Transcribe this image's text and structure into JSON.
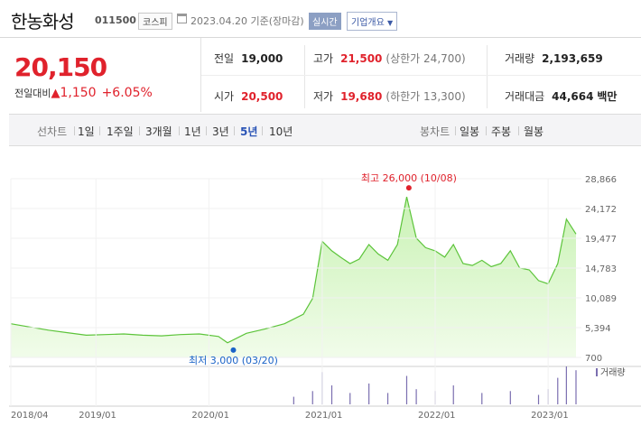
{
  "header": {
    "stock_name": "한농화성",
    "stock_code": "011500",
    "market_badge": "코스피",
    "date_text": "2023.04.20 기준(장마감)",
    "realtime_badge": "실시간",
    "company_info_button": "기업개요"
  },
  "price": {
    "current": "20,150",
    "change_label": "전일대비",
    "change_value": "1,150",
    "change_pct": "+6.05%"
  },
  "summary": {
    "prev_close_label": "전일",
    "prev_close": "19,000",
    "high_label": "고가",
    "high": "21,500",
    "upper_limit_label": "(상한가",
    "upper_limit": "24,700)",
    "volume_label": "거래량",
    "volume": "2,193,659",
    "open_label": "시가",
    "open": "20,500",
    "low_label": "저가",
    "low": "19,680",
    "lower_limit_label": "(하한가",
    "lower_limit": "13,300)",
    "amount_label": "거래대금",
    "amount": "44,664",
    "amount_unit": "백만"
  },
  "tabs": {
    "line_label": "선차트",
    "line_periods": [
      "1일",
      "1주일",
      "3개월",
      "1년",
      "3년",
      "5년",
      "10년"
    ],
    "active_period": "5년",
    "candle_label": "봉차트",
    "candle_periods": [
      "일봉",
      "주봉",
      "월봉"
    ]
  },
  "colors": {
    "up": "#e0222c",
    "area_line": "#5cc43a",
    "area_fill_top": "#c9f2b4",
    "area_fill_bottom": "#f1fcea",
    "volume_bar": "#7b6fb0",
    "active_tab": "#2a54b6",
    "low_marker": "#1a63c7"
  },
  "chart_data": {
    "type": "area",
    "y_ticks": [
      "28,866",
      "24,172",
      "19,477",
      "14,783",
      "10,089",
      "5,394",
      "700"
    ],
    "ylim": [
      700,
      28866
    ],
    "x_ticks": [
      "2018/04",
      "2019/01",
      "2020/01",
      "2021/01",
      "2022/01",
      "2023/01"
    ],
    "x_tick_dates": [
      "2018-04",
      "2019-01",
      "2020-01",
      "2021-01",
      "2022-01",
      "2023-01"
    ],
    "xlim": [
      "2018-04",
      "2023-04"
    ],
    "high_annotation": "최고 26,000 (10/08)",
    "high_point": {
      "date": "2021-10-08",
      "value": 26000
    },
    "low_annotation": "최저 3,000 (03/20)",
    "low_point": {
      "date": "2020-03-20",
      "value": 3000
    },
    "volume_legend": "거래량",
    "series": [
      {
        "x": [
          "2018-04",
          "2018-06",
          "2018-08",
          "2018-10",
          "2018-12",
          "2019-02",
          "2019-04",
          "2019-06",
          "2019-08",
          "2019-10",
          "2019-12",
          "2020-02",
          "2020-03",
          "2020-05",
          "2020-07",
          "2020-09",
          "2020-11",
          "2020-12",
          "2021-01",
          "2021-02",
          "2021-03",
          "2021-04",
          "2021-05",
          "2021-06",
          "2021-07",
          "2021-08",
          "2021-09",
          "2021-10",
          "2021-11",
          "2021-12",
          "2022-01",
          "2022-02",
          "2022-03",
          "2022-04",
          "2022-05",
          "2022-06",
          "2022-07",
          "2022-08",
          "2022-09",
          "2022-10",
          "2022-11",
          "2022-12",
          "2023-01",
          "2023-02",
          "2023-03",
          "2023-04"
        ],
        "values": [
          6000,
          5500,
          5000,
          4600,
          4200,
          4300,
          4400,
          4200,
          4100,
          4300,
          4400,
          4000,
          3000,
          4500,
          5200,
          6000,
          7500,
          10000,
          19000,
          17500,
          16500,
          15500,
          16200,
          18500,
          17000,
          16000,
          18500,
          26000,
          19500,
          18000,
          17500,
          16500,
          18500,
          15500,
          15200,
          16000,
          15000,
          15500,
          17500,
          14800,
          14500,
          12800,
          12300,
          15500,
          22500,
          20150
        ]
      }
    ],
    "volume": {
      "x": [
        "2020-10",
        "2020-12",
        "2021-01",
        "2021-02",
        "2021-04",
        "2021-06",
        "2021-08",
        "2021-10",
        "2021-11",
        "2022-01",
        "2022-03",
        "2022-06",
        "2022-09",
        "2022-12",
        "2023-01",
        "2023-02",
        "2023-03",
        "2023-04"
      ],
      "values": [
        0.2,
        0.35,
        0.85,
        0.5,
        0.3,
        0.55,
        0.3,
        0.75,
        0.4,
        0.35,
        0.5,
        0.3,
        0.35,
        0.25,
        0.4,
        0.7,
        1.0,
        0.9
      ]
    }
  }
}
